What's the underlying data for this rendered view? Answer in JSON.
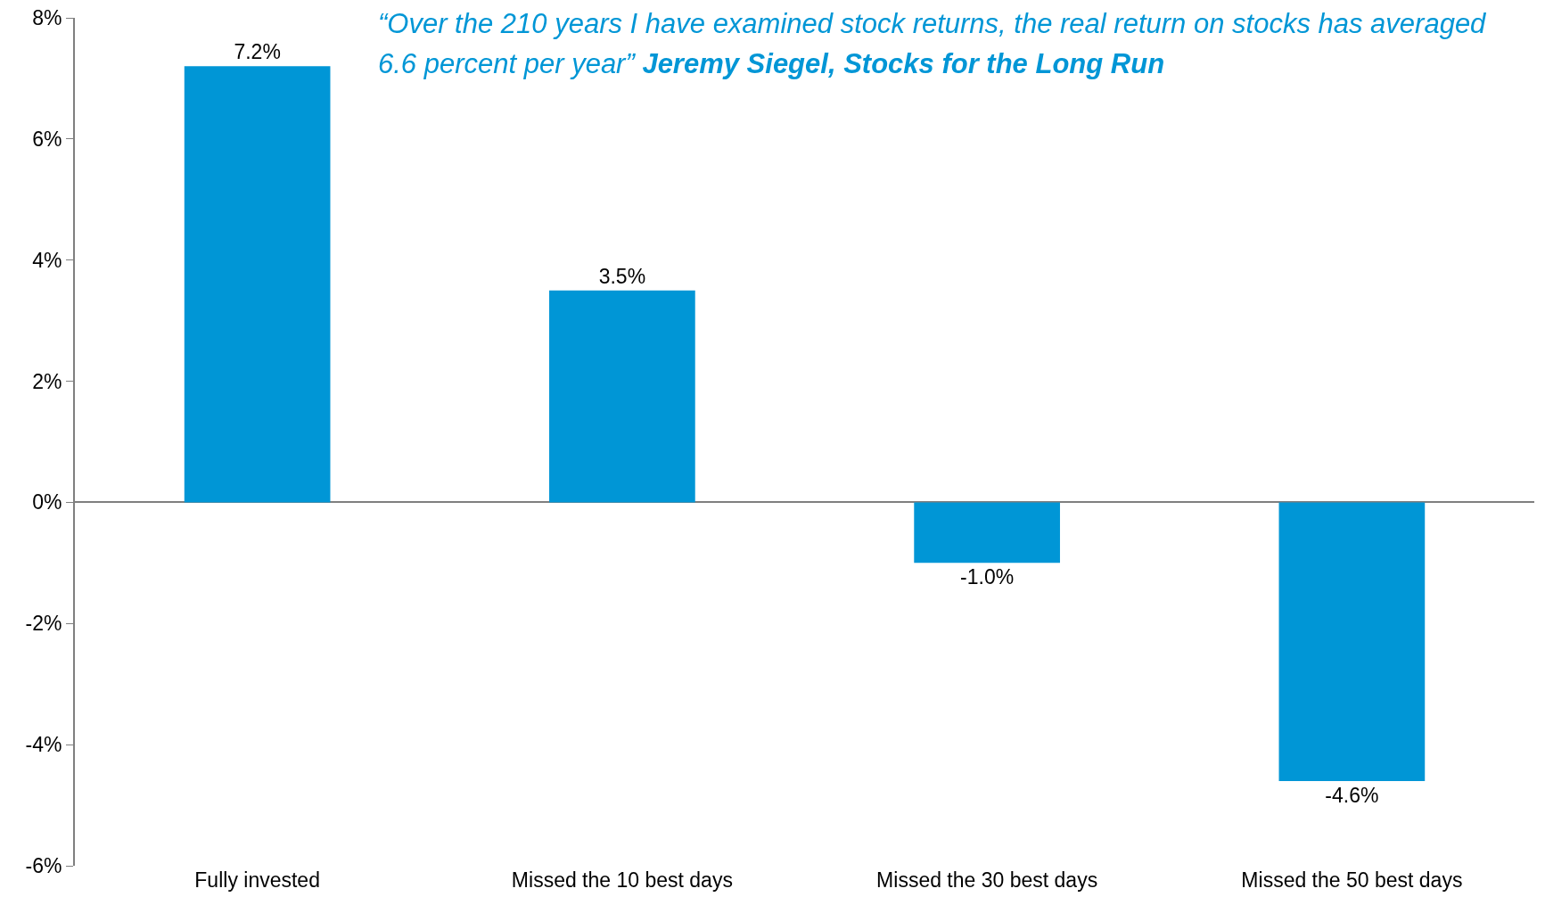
{
  "chart_data": {
    "type": "bar",
    "categories": [
      "Fully invested",
      "Missed the 10 best days",
      "Missed the 30 best days",
      "Missed the 50 best days"
    ],
    "values": [
      7.2,
      3.5,
      -1.0,
      -4.6
    ],
    "value_labels": [
      "7.2%",
      "3.5%",
      "-1.0%",
      "-4.6%"
    ],
    "color": "#0096d6",
    "ylim": [
      -6,
      8
    ],
    "yticks": [
      {
        "value": -6,
        "label": "-6%"
      },
      {
        "value": -4,
        "label": "-4%"
      },
      {
        "value": -2,
        "label": "-2%"
      },
      {
        "value": 0,
        "label": "0%"
      },
      {
        "value": 2,
        "label": "2%"
      },
      {
        "value": 4,
        "label": "4%"
      },
      {
        "value": 6,
        "label": "6%"
      },
      {
        "value": 8,
        "label": "8%"
      }
    ],
    "annotations": [
      "“Over the 210 years I have examined stock returns, the real return on stocks has averaged 6.6 percent per year”",
      "Jeremy Siegel, Stocks for the Long Run"
    ]
  }
}
